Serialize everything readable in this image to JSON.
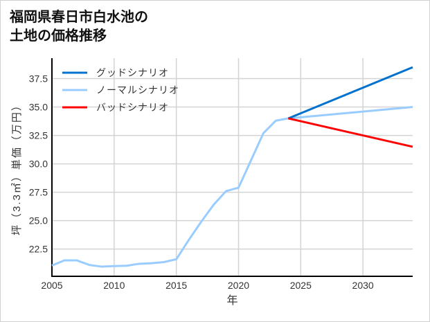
{
  "chart_data": {
    "type": "line",
    "title": "福岡県春日市白水池の\n土地の価格推移",
    "xlabel": "年",
    "ylabel": "坪（3.3㎡）単価（万円）",
    "xlim": [
      2005,
      2034
    ],
    "ylim": [
      20.1,
      39.3
    ],
    "xticks": [
      2005,
      2010,
      2015,
      2020,
      2025,
      2030
    ],
    "yticks": [
      22.5,
      25.0,
      27.5,
      30.0,
      32.5,
      35.0,
      37.5
    ],
    "ytick_labels": [
      "22.5",
      "25.0",
      "27.5",
      "30.0",
      "32.5",
      "35.0",
      "37.5"
    ],
    "grid": true,
    "legend_position": "top-left",
    "series": [
      {
        "name": "グッドシナリオ",
        "color": "#0072CE",
        "x": [
          2024,
          2034
        ],
        "y": [
          34.0,
          38.5
        ]
      },
      {
        "name": "ノーマルシナリオ",
        "color": "#99CCFF",
        "x": [
          2005,
          2006,
          2007,
          2008,
          2009,
          2010,
          2011,
          2012,
          2013,
          2014,
          2015,
          2016,
          2017,
          2018,
          2019,
          2020,
          2021,
          2022,
          2023,
          2024,
          2034
        ],
        "y": [
          21.05,
          21.5,
          21.5,
          21.1,
          20.95,
          21.0,
          21.03,
          21.2,
          21.25,
          21.35,
          21.6,
          23.3,
          24.9,
          26.4,
          27.6,
          27.9,
          30.3,
          32.7,
          33.8,
          34.0,
          35.0
        ]
      },
      {
        "name": "バッドシナリオ",
        "color": "#FF0000",
        "x": [
          2024,
          2034
        ],
        "y": [
          34.0,
          31.5
        ]
      }
    ]
  }
}
